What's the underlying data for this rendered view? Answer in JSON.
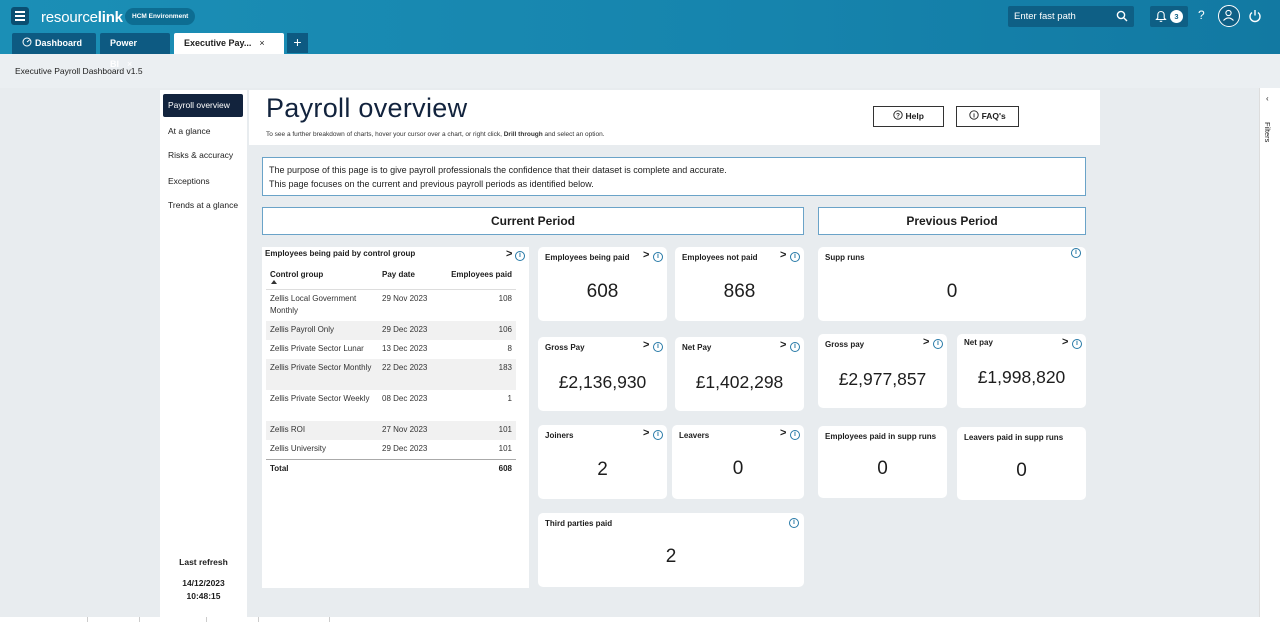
{
  "app": {
    "logo_left": "resource",
    "logo_right": "link",
    "environment": "HCM Environment",
    "fast_path_placeholder": "Enter fast path",
    "notification_count": "3",
    "help": "?"
  },
  "tabs": [
    {
      "label": "Dashboard",
      "closable": false
    },
    {
      "label": "Power BI",
      "closable": true
    },
    {
      "label": "Executive Pay...",
      "closable": true
    }
  ],
  "tab_add": "+",
  "document_title": "Executive Payroll Dashboard v1.5",
  "nav": {
    "items": [
      "Payroll overview",
      "At a glance",
      "Risks & accuracy",
      "Exceptions",
      "Trends at a glance"
    ],
    "last_refresh_label": "Last refresh",
    "last_refresh_date": "14/12/2023",
    "last_refresh_time": "10:48:15"
  },
  "header": {
    "title": "Payroll overview",
    "subtitle_pre": "To see a further breakdown of charts, hover your cursor over a chart, or right click,",
    "subtitle_bold": "Drill through",
    "subtitle_post": "and select an option.",
    "help_button": "Help",
    "faq_button": "FAQ's"
  },
  "purpose": {
    "line1": "The purpose of this page is to give payroll professionals the confidence that their dataset is complete and accurate.",
    "line2": "This page focuses on the current and previous payroll periods as identified below."
  },
  "current_period": {
    "heading": "Current Period",
    "table": {
      "title": "Employees being paid by control group",
      "columns": [
        "Control group",
        "Pay date",
        "Employees paid"
      ],
      "rows": [
        {
          "group": "Zellis Local Government Monthly",
          "date": "29 Nov 2023",
          "paid": "108"
        },
        {
          "group": "Zellis Payroll Only",
          "date": "29 Dec 2023",
          "paid": "106"
        },
        {
          "group": "Zellis Private Sector Lunar",
          "date": "13 Dec 2023",
          "paid": "8"
        },
        {
          "group": "Zellis Private Sector Monthly",
          "date": "22 Dec 2023",
          "paid": "183"
        },
        {
          "group": "Zellis Private Sector Weekly",
          "date": "08 Dec 2023",
          "paid": "1"
        },
        {
          "group": "Zellis ROI",
          "date": "27 Nov 2023",
          "paid": "101"
        },
        {
          "group": "Zellis University",
          "date": "29 Dec 2023",
          "paid": "101"
        }
      ],
      "total_label": "Total",
      "total_value": "608"
    },
    "cards": {
      "emp_paid": {
        "title": "Employees being paid",
        "value": "608"
      },
      "emp_not_paid": {
        "title": "Employees not paid",
        "value": "868"
      },
      "gross_pay": {
        "title": "Gross Pay",
        "value": "£2,136,930"
      },
      "net_pay": {
        "title": "Net Pay",
        "value": "£1,402,298"
      },
      "joiners": {
        "title": "Joiners",
        "value": "2"
      },
      "leavers": {
        "title": "Leavers",
        "value": "0"
      },
      "third_parties": {
        "title": "Third parties paid",
        "value": "2"
      }
    }
  },
  "previous_period": {
    "heading": "Previous Period",
    "cards": {
      "supp_runs": {
        "title": "Supp runs",
        "value": "0"
      },
      "gross_pay": {
        "title": "Gross pay",
        "value": "£2,977,857"
      },
      "net_pay": {
        "title": "Net pay",
        "value": "£1,998,820"
      },
      "emp_paid_supp": {
        "title": "Employees paid in supp runs",
        "value": "0"
      },
      "leavers_paid_supp": {
        "title": "Leavers paid in supp runs",
        "value": "0"
      }
    }
  },
  "filters_label": "Filters",
  "icons": {
    "arrow": ">",
    "info": "i",
    "close": "×",
    "collapse": "‹"
  },
  "colors": {
    "topbar": "#1684ad",
    "nav_active": "#12233d",
    "accent_border": "#6aa3c8"
  }
}
